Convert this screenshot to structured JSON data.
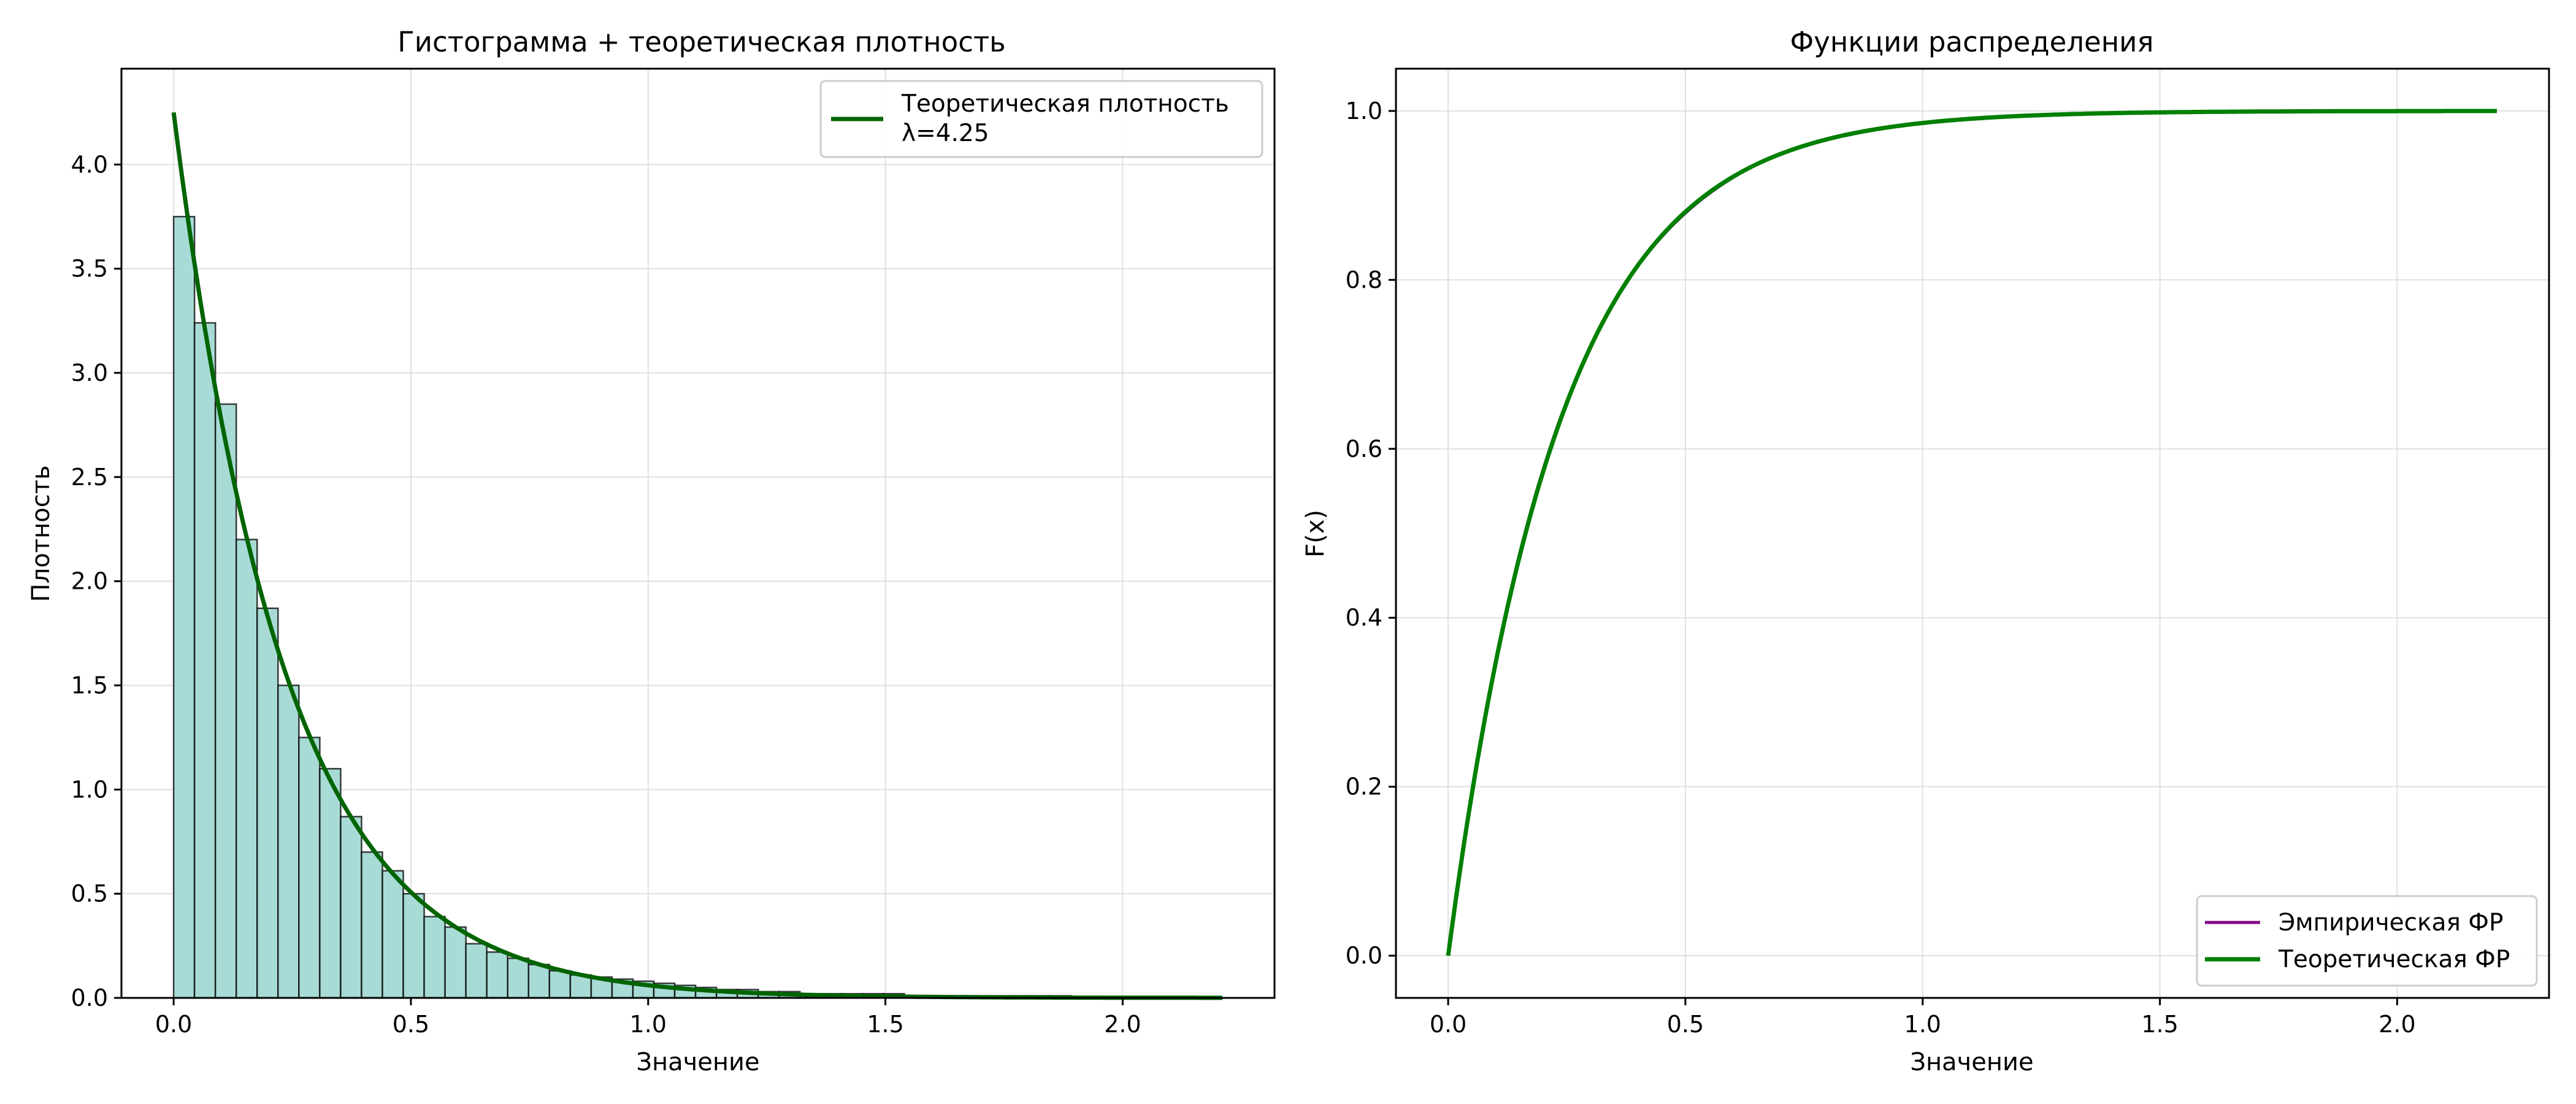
{
  "colors": {
    "hist_fill": "#a8dbd5",
    "hist_edge": "#000000",
    "theory_pdf": "#006400",
    "empirical_cdf": "#800080",
    "theory_cdf": "#008000",
    "grid": "#e0e0e0",
    "legend_border": "#cccccc"
  },
  "chart_data": [
    {
      "type": "bar",
      "title": "Гистограмма + теоретическая плотность",
      "xlabel": "Значение",
      "ylabel": "Плотность",
      "xlim": [
        -0.11,
        2.32
      ],
      "ylim": [
        0,
        4.46
      ],
      "xticks": [
        0.0,
        0.5,
        1.0,
        1.5,
        2.0
      ],
      "xtick_labels": [
        "0.0",
        "0.5",
        "1.0",
        "1.5",
        "2.0"
      ],
      "yticks": [
        0.0,
        0.5,
        1.0,
        1.5,
        2.0,
        2.5,
        3.0,
        3.5,
        4.0
      ],
      "ytick_labels": [
        "0.0",
        "0.5",
        "1.0",
        "1.5",
        "2.0",
        "2.5",
        "3.0",
        "3.5",
        "4.0"
      ],
      "grid": true,
      "legend_position": "top-right",
      "bin_start": 0.0,
      "bin_width": 0.044,
      "histogram_values": [
        3.75,
        3.24,
        2.85,
        2.2,
        1.87,
        1.5,
        1.25,
        1.1,
        0.87,
        0.7,
        0.61,
        0.5,
        0.39,
        0.34,
        0.26,
        0.22,
        0.19,
        0.16,
        0.13,
        0.11,
        0.1,
        0.09,
        0.08,
        0.07,
        0.06,
        0.05,
        0.04,
        0.04,
        0.03,
        0.03,
        0.02,
        0.02,
        0.02,
        0.02,
        0.02,
        0.01,
        0.01,
        0.01,
        0.01,
        0.01,
        0.01,
        0.01,
        0.01,
        0.005,
        0.005,
        0.005,
        0.005,
        0.005,
        0.005,
        0.005
      ],
      "series": [
        {
          "name": "Теоретическая плотность\nλ=4.25",
          "legend_lines": [
            "Теоретическая плотность",
            "λ=4.25"
          ],
          "lambda": 4.25,
          "x_range": [
            0.0,
            2.21
          ],
          "formula": "λ·e^(−λx)"
        }
      ]
    },
    {
      "type": "line",
      "title": "Функции распределения",
      "xlabel": "Значение",
      "ylabel": "F(x)",
      "xlim": [
        -0.11,
        2.32
      ],
      "ylim": [
        -0.05,
        1.05
      ],
      "xticks": [
        0.0,
        0.5,
        1.0,
        1.5,
        2.0
      ],
      "xtick_labels": [
        "0.0",
        "0.5",
        "1.0",
        "1.5",
        "2.0"
      ],
      "yticks": [
        0.0,
        0.2,
        0.4,
        0.6,
        0.8,
        1.0
      ],
      "ytick_labels": [
        "0.0",
        "0.2",
        "0.4",
        "0.6",
        "0.8",
        "1.0"
      ],
      "grid": true,
      "legend_position": "bottom-right",
      "series": [
        {
          "name": "Эмпирическая ФР",
          "x_range": [
            0.0,
            2.21
          ],
          "lambda": 4.25,
          "formula": "1 − e^(−λx)"
        },
        {
          "name": "Теоретическая ФР",
          "x_range": [
            0.0,
            2.21
          ],
          "lambda": 4.25,
          "formula": "1 − e^(−λx)"
        }
      ]
    }
  ]
}
